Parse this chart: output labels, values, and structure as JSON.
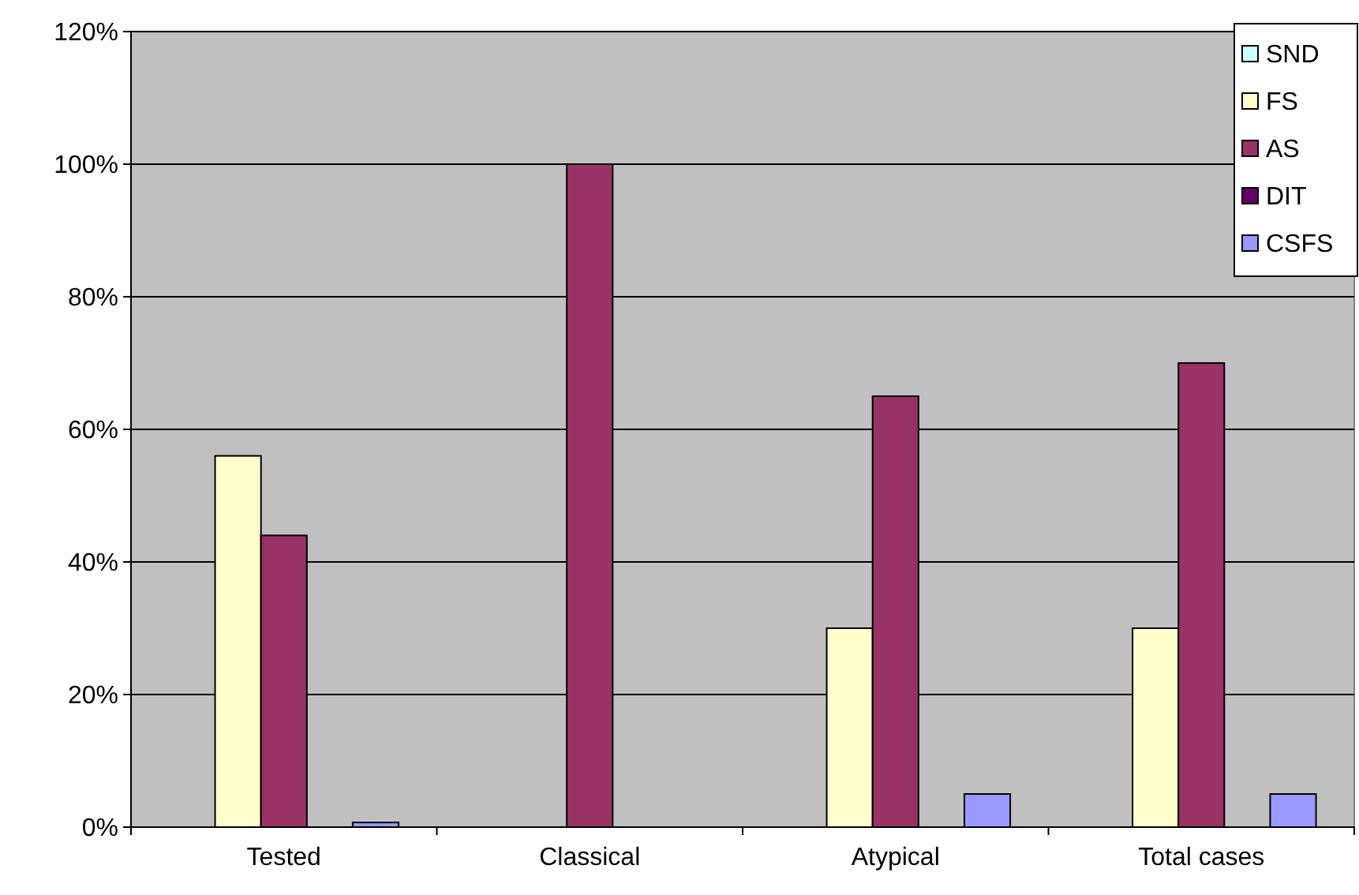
{
  "chart_data": {
    "type": "bar",
    "categories": [
      "Tested",
      "Classical",
      "Atypical",
      "Total cases"
    ],
    "series": [
      {
        "name": "SND",
        "color": "#ccffff",
        "values": [
          0,
          0,
          0,
          0
        ]
      },
      {
        "name": "FS",
        "color": "#ffffcc",
        "values": [
          56,
          0,
          30,
          30
        ]
      },
      {
        "name": "AS",
        "color": "#993366",
        "values": [
          44,
          100,
          65,
          70
        ]
      },
      {
        "name": "DIT",
        "color": "#660066",
        "values": [
          0,
          0,
          0,
          0
        ]
      },
      {
        "name": "CSFS",
        "color": "#9999ff",
        "values": [
          0.7,
          0,
          5,
          5
        ]
      }
    ],
    "ylim": [
      0,
      120
    ],
    "yticks": [
      {
        "value": 0,
        "label": "0%"
      },
      {
        "value": 20,
        "label": "20%"
      },
      {
        "value": 40,
        "label": "40%"
      },
      {
        "value": 60,
        "label": "60%"
      },
      {
        "value": 80,
        "label": "80%"
      },
      {
        "value": 100,
        "label": "100%"
      },
      {
        "value": 120,
        "label": "120%"
      }
    ],
    "grid": "y",
    "legend": "top right"
  }
}
